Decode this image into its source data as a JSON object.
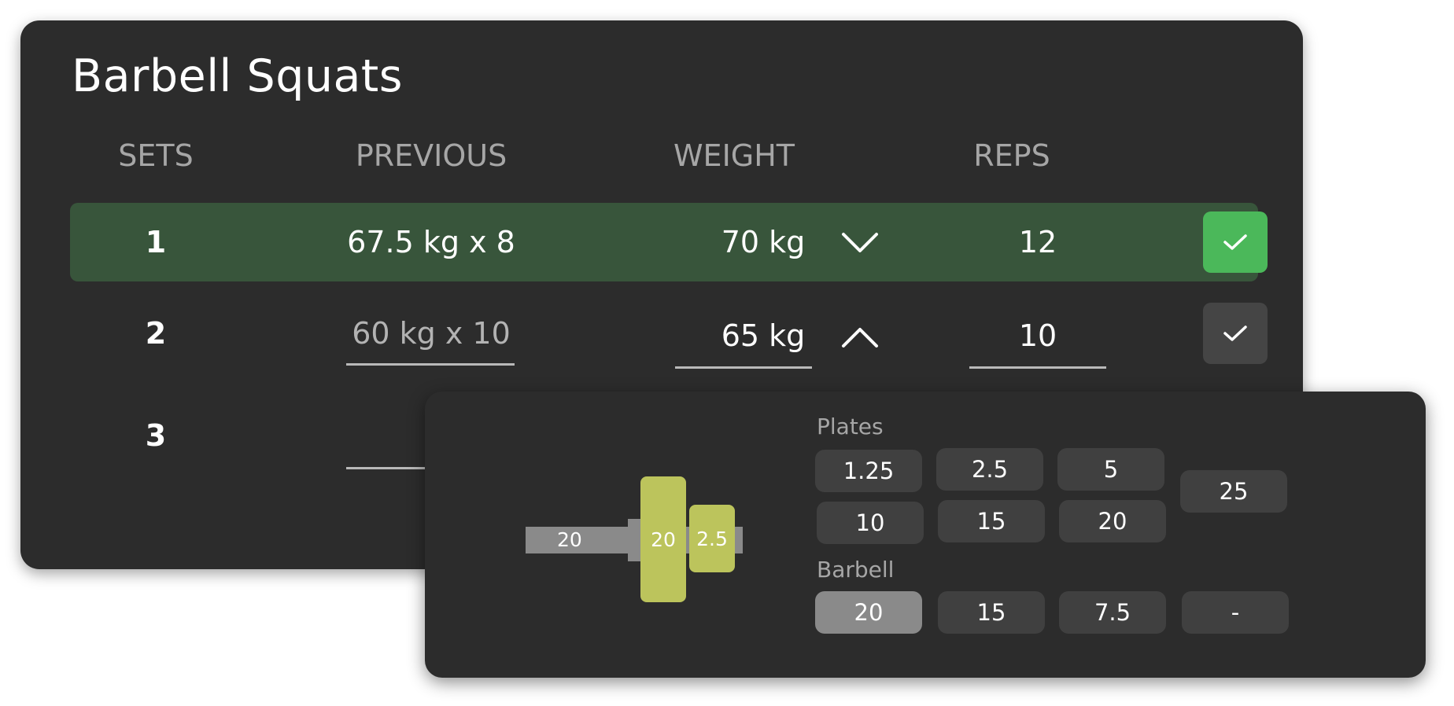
{
  "exercise": {
    "title": "Barbell Squats"
  },
  "columns": {
    "sets": "SETS",
    "previous": "PREVIOUS",
    "weight": "WEIGHT",
    "reps": "REPS"
  },
  "sets": [
    {
      "number": "1",
      "previous": "67.5 kg x 8",
      "weight": "70 kg",
      "reps": "12",
      "completed": true,
      "expanded": false
    },
    {
      "number": "2",
      "previous": "60 kg x 10",
      "weight": "65 kg",
      "reps": "10",
      "completed": false,
      "expanded": true
    },
    {
      "number": "3",
      "previous": "",
      "weight": "",
      "reps": "",
      "completed": false
    }
  ],
  "plate_calculator": {
    "visual": {
      "bar": "20",
      "plates": [
        "20",
        "2.5"
      ]
    },
    "plates_label": "Plates",
    "plates": [
      "1.25",
      "2.5",
      "5",
      "10",
      "15",
      "20",
      "25"
    ],
    "barbell_label": "Barbell",
    "barbells": [
      "20",
      "15",
      "7.5",
      "-"
    ],
    "selected_barbell": "20"
  },
  "colors": {
    "card_bg": "#2c2c2c",
    "active_row": "#38553b",
    "check_done": "#4bb85a",
    "check_idle": "#454545",
    "plate": "#bcc45c",
    "chip": "#404040",
    "chip_selected": "#8a8a8a"
  },
  "icons": {
    "collapse": "chevron-down-icon",
    "expand": "chevron-up-icon",
    "complete": "checkmark-icon"
  }
}
